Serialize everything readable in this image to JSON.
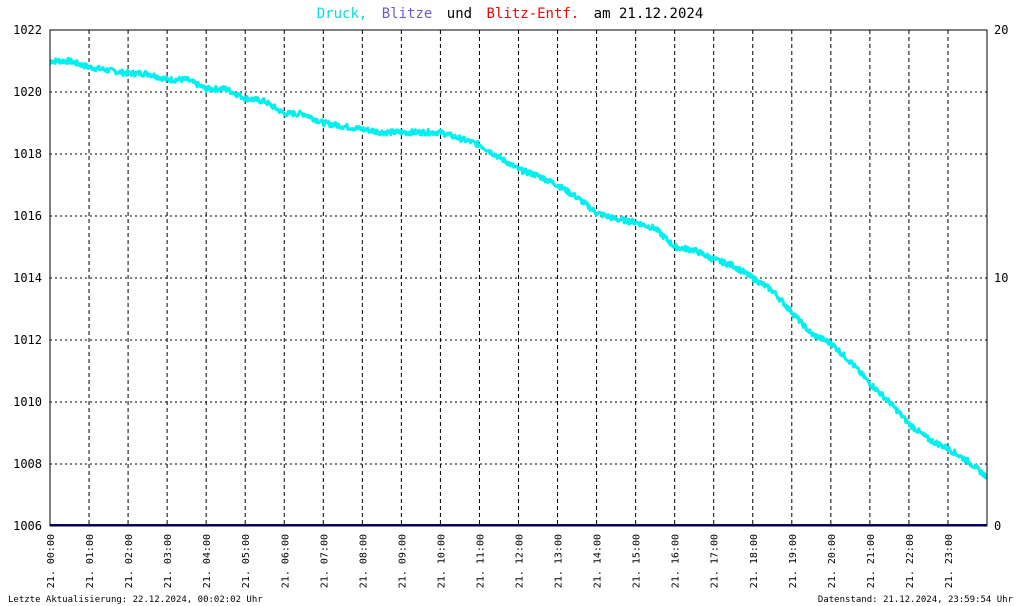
{
  "colors": {
    "pressure": "#00f0f0",
    "lightning": "#6a5acd",
    "distance": "#ff0000",
    "zero_line": "#000080",
    "grid": "#000000",
    "text": "#000000"
  },
  "title": {
    "part1": "Druck,",
    "part2": "Blitze",
    "part3": "und",
    "part4": "Blitz-Entf.",
    "part5": "am 21.12.2024"
  },
  "footer": {
    "left": "Letzte Aktualisierung: 22.12.2024, 00:02:02 Uhr",
    "right": "Datenstand: 21.12.2024, 23:59:54 Uhr"
  },
  "chart_data": {
    "type": "line",
    "title": "Druck, Blitze und Blitz-Entf. am 21.12.2024",
    "x_tick_labels": [
      "21. 00:00",
      "21. 01:00",
      "21. 02:00",
      "21. 03:00",
      "21. 04:00",
      "21. 05:00",
      "21. 06:00",
      "21. 07:00",
      "21. 08:00",
      "21. 09:00",
      "21. 10:00",
      "21. 11:00",
      "21. 12:00",
      "21. 13:00",
      "21. 14:00",
      "21. 15:00",
      "21. 16:00",
      "21. 17:00",
      "21. 18:00",
      "21. 19:00",
      "21. 20:00",
      "21. 21:00",
      "21. 22:00",
      "21. 23:00"
    ],
    "xlim": [
      "21.12.2024 00:00",
      "22.12.2024 00:00"
    ],
    "y_left": {
      "ylim": [
        1006,
        1022
      ],
      "ticks": [
        1006,
        1008,
        1010,
        1012,
        1014,
        1016,
        1018,
        1020,
        1022
      ]
    },
    "y_right": {
      "ylim": [
        0,
        20
      ],
      "ticks": [
        0,
        10,
        20
      ]
    },
    "grid": true,
    "series": [
      {
        "name": "Druck",
        "axis": "left",
        "x": [
          "00:00",
          "00:30",
          "01:00",
          "01:30",
          "02:00",
          "02:30",
          "03:00",
          "03:30",
          "04:00",
          "04:30",
          "05:00",
          "05:30",
          "06:00",
          "06:30",
          "07:00",
          "07:30",
          "08:00",
          "08:30",
          "09:00",
          "09:30",
          "10:00",
          "10:30",
          "11:00",
          "11:30",
          "12:00",
          "12:30",
          "13:00",
          "13:30",
          "14:00",
          "14:30",
          "15:00",
          "15:30",
          "16:00",
          "16:30",
          "17:00",
          "17:30",
          "18:00",
          "18:30",
          "19:00",
          "19:30",
          "20:00",
          "20:30",
          "21:00",
          "21:30",
          "22:00",
          "22:30",
          "23:00",
          "23:30",
          "23:59"
        ],
        "values": [
          1021.0,
          1021.0,
          1020.8,
          1020.7,
          1020.6,
          1020.6,
          1020.4,
          1020.4,
          1020.1,
          1020.1,
          1019.8,
          1019.7,
          1019.3,
          1019.3,
          1019.0,
          1018.9,
          1018.8,
          1018.7,
          1018.7,
          1018.7,
          1018.7,
          1018.5,
          1018.3,
          1017.9,
          1017.5,
          1017.3,
          1017.0,
          1016.6,
          1016.1,
          1015.9,
          1015.8,
          1015.6,
          1015.0,
          1014.9,
          1014.6,
          1014.4,
          1014.0,
          1013.6,
          1012.9,
          1012.2,
          1011.9,
          1011.3,
          1010.6,
          1010.0,
          1009.3,
          1008.8,
          1008.5,
          1008.1,
          1007.6
        ]
      },
      {
        "name": "Blitze",
        "axis": "right",
        "x": [
          "00:00",
          "23:59"
        ],
        "values": [
          0,
          0
        ]
      }
    ]
  }
}
